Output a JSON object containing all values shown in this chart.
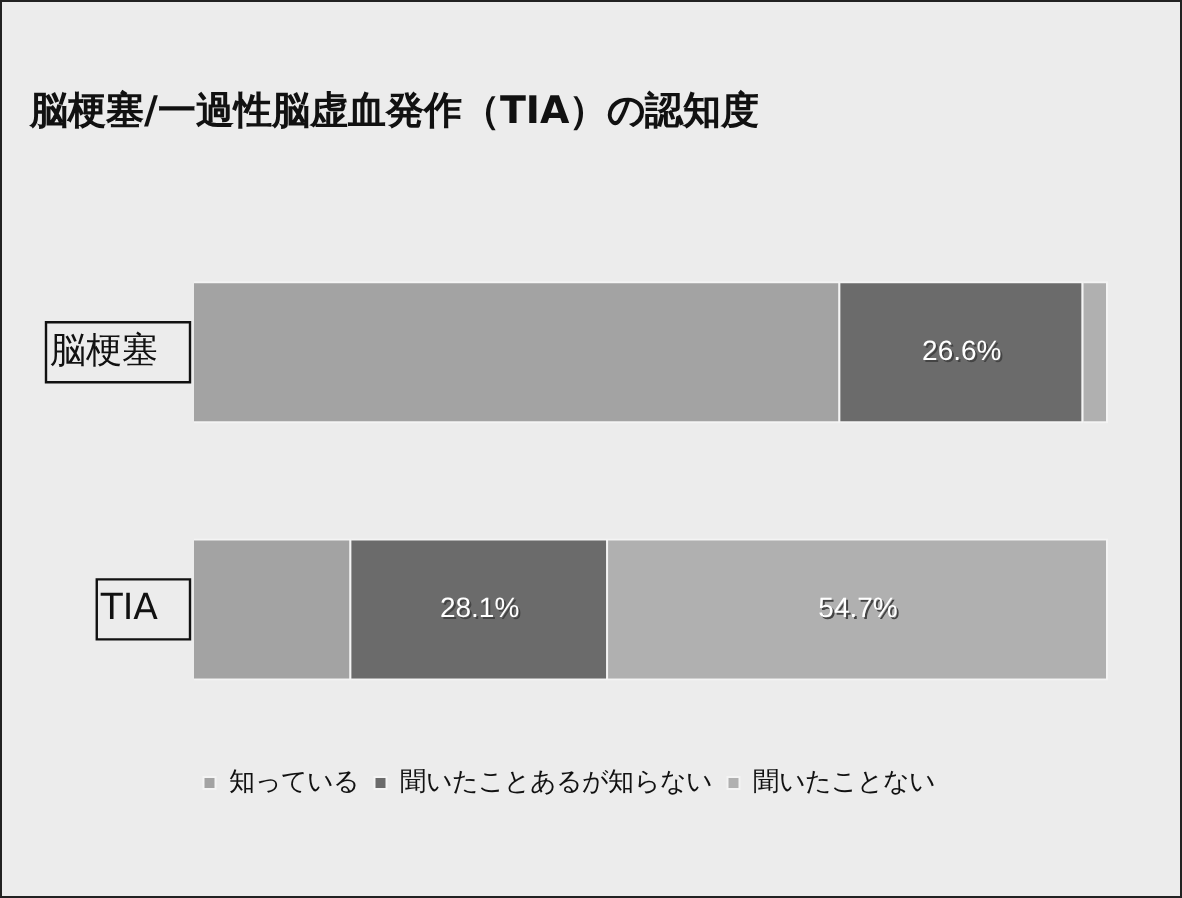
{
  "chart_data": {
    "type": "bar",
    "orientation": "horizontal",
    "stacked": true,
    "title": "脳梗塞/一過性脳虚血発作（TIA）の認知度",
    "categories": [
      "脳梗塞",
      "TIA"
    ],
    "xlim": [
      0,
      100
    ],
    "tick_labels": "y",
    "legend": "bottom",
    "series": [
      {
        "name": "知っている",
        "color": "#a3a3a3",
        "values": [
          70.7,
          17.2
        ],
        "value_labels": [
          null,
          null
        ]
      },
      {
        "name": "聞いたことあるが知らない",
        "color": "#6b6b6b",
        "values": [
          26.6,
          28.1
        ],
        "value_labels": [
          "26.6%",
          "28.1%"
        ]
      },
      {
        "name": "聞いたことない",
        "color": "#b0b0b0",
        "values": [
          2.7,
          54.7
        ],
        "value_labels": [
          null,
          "54.7%"
        ]
      }
    ]
  }
}
